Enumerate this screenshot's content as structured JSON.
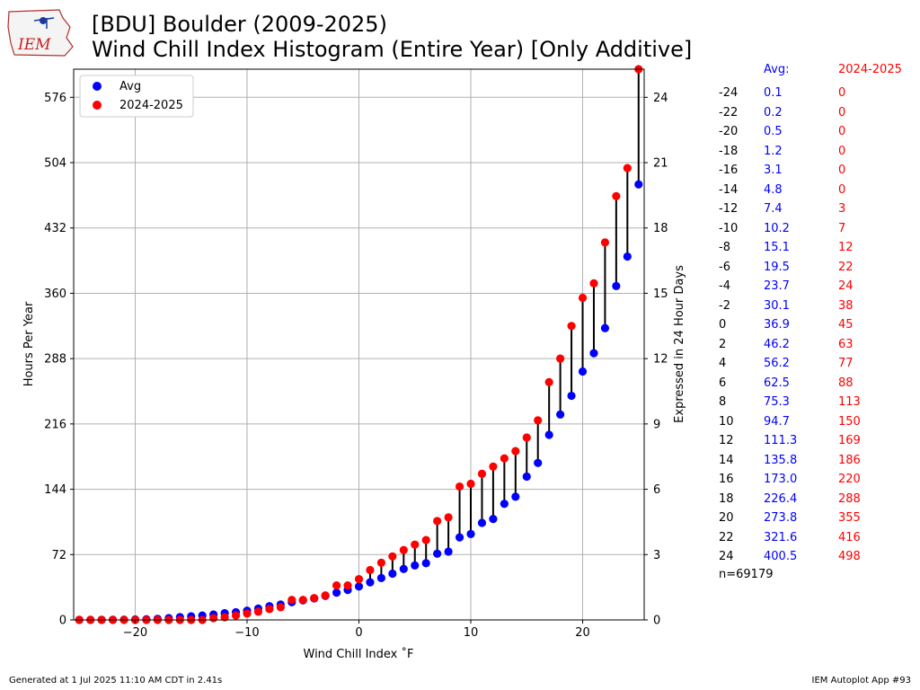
{
  "header": {
    "title_line1": "[BDU] Boulder (2009-2025)",
    "title_line2": "Wind Chill Index Histogram (Entire Year) [Only Additive]",
    "logo_text": "IEM"
  },
  "footer": {
    "generated": "Generated at 1 Jul 2025 11:10 AM CDT in 2.41s",
    "app": "IEM Autoplot App #93"
  },
  "colors": {
    "avg": "#0000ff",
    "recent": "#ff0000",
    "stem": "#000000",
    "grid": "#b0b0b0"
  },
  "chart_data": {
    "type": "scatter",
    "xlabel": "Wind Chill Index ˚F",
    "ylabel": "Hours Per Year",
    "ylabel_right": "Expressed in 24 Hour Days",
    "xlim": [
      -25.5,
      25.5
    ],
    "ylim": [
      0,
      607
    ],
    "xticks": [
      -20,
      -10,
      0,
      10,
      20
    ],
    "yticks": [
      0,
      72,
      144,
      216,
      288,
      360,
      432,
      504,
      576
    ],
    "yticks_right": [
      0,
      3,
      6,
      9,
      12,
      15,
      18,
      21,
      24
    ],
    "grid": true,
    "legend_position": "upper-left",
    "x": [
      -25,
      -24,
      -23,
      -22,
      -21,
      -20,
      -19,
      -18,
      -17,
      -16,
      -15,
      -14,
      -13,
      -12,
      -11,
      -10,
      -9,
      -8,
      -7,
      -6,
      -5,
      -4,
      -3,
      -2,
      -1,
      0,
      1,
      2,
      3,
      4,
      5,
      6,
      7,
      8,
      9,
      10,
      11,
      12,
      13,
      14,
      15,
      16,
      17,
      18,
      19,
      20,
      21,
      22,
      23,
      24,
      25
    ],
    "series": [
      {
        "name": "Avg",
        "color": "#0000ff",
        "values": [
          0.1,
          0.1,
          0.2,
          0.2,
          0.3,
          0.5,
          0.8,
          1.2,
          2,
          3.1,
          4,
          4.8,
          6,
          7.4,
          8.5,
          10.2,
          12.5,
          15.1,
          17,
          19.5,
          21.5,
          23.7,
          26.5,
          30.1,
          33,
          36.9,
          41.5,
          46.2,
          51,
          56.2,
          60,
          62.5,
          73,
          75.3,
          91,
          94.7,
          107,
          111.3,
          128,
          135.8,
          158,
          173.0,
          204,
          226.4,
          247,
          273.8,
          294,
          321.6,
          368,
          400.5,
          480
        ]
      },
      {
        "name": "2024-2025",
        "color": "#ff0000",
        "values": [
          0,
          0,
          0,
          0,
          0,
          0,
          0,
          0,
          0,
          0,
          0,
          0,
          2,
          3,
          5,
          7,
          9,
          12,
          14,
          22,
          22,
          24,
          27,
          38,
          38,
          45,
          55,
          63,
          70,
          77,
          83,
          88,
          109,
          113,
          147,
          150,
          161,
          169,
          178,
          186,
          201,
          220,
          262,
          288,
          324,
          355,
          371,
          416,
          467,
          498,
          607
        ]
      }
    ]
  },
  "table": {
    "header_avg": "Avg:",
    "header_year": "2024-2025",
    "rows": [
      [
        "-24",
        "0.1",
        "0"
      ],
      [
        "-22",
        "0.2",
        "0"
      ],
      [
        "-20",
        "0.5",
        "0"
      ],
      [
        "-18",
        "1.2",
        "0"
      ],
      [
        "-16",
        "3.1",
        "0"
      ],
      [
        "-14",
        "4.8",
        "0"
      ],
      [
        "-12",
        "7.4",
        "3"
      ],
      [
        "-10",
        "10.2",
        "7"
      ],
      [
        "-8",
        "15.1",
        "12"
      ],
      [
        "-6",
        "19.5",
        "22"
      ],
      [
        "-4",
        "23.7",
        "24"
      ],
      [
        "-2",
        "30.1",
        "38"
      ],
      [
        "0",
        "36.9",
        "45"
      ],
      [
        "2",
        "46.2",
        "63"
      ],
      [
        "4",
        "56.2",
        "77"
      ],
      [
        "6",
        "62.5",
        "88"
      ],
      [
        "8",
        "75.3",
        "113"
      ],
      [
        "10",
        "94.7",
        "150"
      ],
      [
        "12",
        "111.3",
        "169"
      ],
      [
        "14",
        "135.8",
        "186"
      ],
      [
        "16",
        "173.0",
        "220"
      ],
      [
        "18",
        "226.4",
        "288"
      ],
      [
        "20",
        "273.8",
        "355"
      ],
      [
        "22",
        "321.6",
        "416"
      ],
      [
        "24",
        "400.5",
        "498"
      ]
    ],
    "count": "n=69179"
  }
}
